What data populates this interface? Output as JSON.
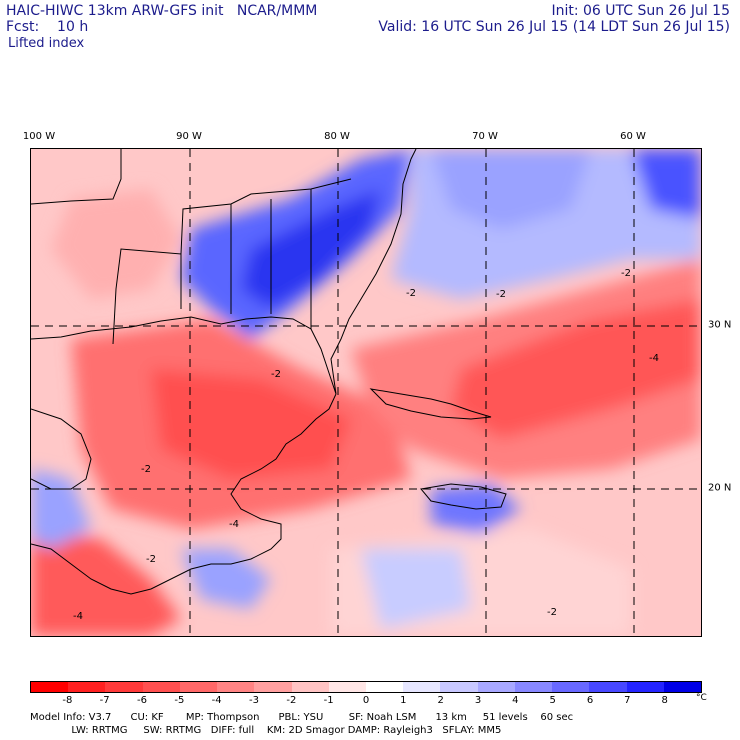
{
  "header": {
    "title_left": "HAIC-HIWC 13km ARW-GFS init   NCAR/MMM",
    "fcst_label": "Fcst:    10 h",
    "init": "Init: 06 UTC Sun 26 Jul 15",
    "valid": "Valid: 16 UTC Sun 26 Jul 15 (14 LDT Sun 26 Jul 15)",
    "field": "Lifted index"
  },
  "lon_labels": [
    "100 W",
    "90 W",
    "80 W",
    "70 W",
    "60 W"
  ],
  "lat_labels": [
    "30 N",
    "20 N"
  ],
  "contour_labels": [
    "-2",
    "-2",
    "-2",
    "-2",
    "-2",
    "-4",
    "-4",
    "-4",
    "-2",
    "-2"
  ],
  "colorbar": {
    "ticks": [
      "-8",
      "-7",
      "-6",
      "-5",
      "-4",
      "-3",
      "-2",
      "-1",
      "0",
      "1",
      "2",
      "3",
      "4",
      "5",
      "6",
      "7",
      "8"
    ],
    "unit": "°C",
    "colors": [
      "#ff0000",
      "#ff2020",
      "#ff3a3a",
      "#ff5050",
      "#ff6868",
      "#ff8484",
      "#ffa0a0",
      "#ffc4c4",
      "#ffe6e6",
      "#ffffff",
      "#e6e6ff",
      "#c8c8ff",
      "#a8a8ff",
      "#8888ff",
      "#6868ff",
      "#4848ff",
      "#2424ff",
      "#0000e6"
    ]
  },
  "model_info": {
    "line1": "Model Info: V3.7      CU: KF       MP: Thompson      PBL: YSU        SF: Noah LSM      13 km     51 levels    60 sec",
    "line2": "             LW: RRTMG     SW: RRTMG   DIFF: full    KM: 2D Smagor DAMP: Rayleigh3   SFLAY: MM5"
  },
  "colors": {
    "text": "#1c1c8c",
    "unstable": "#ff4a4a",
    "stable": "#2a3cf0"
  }
}
